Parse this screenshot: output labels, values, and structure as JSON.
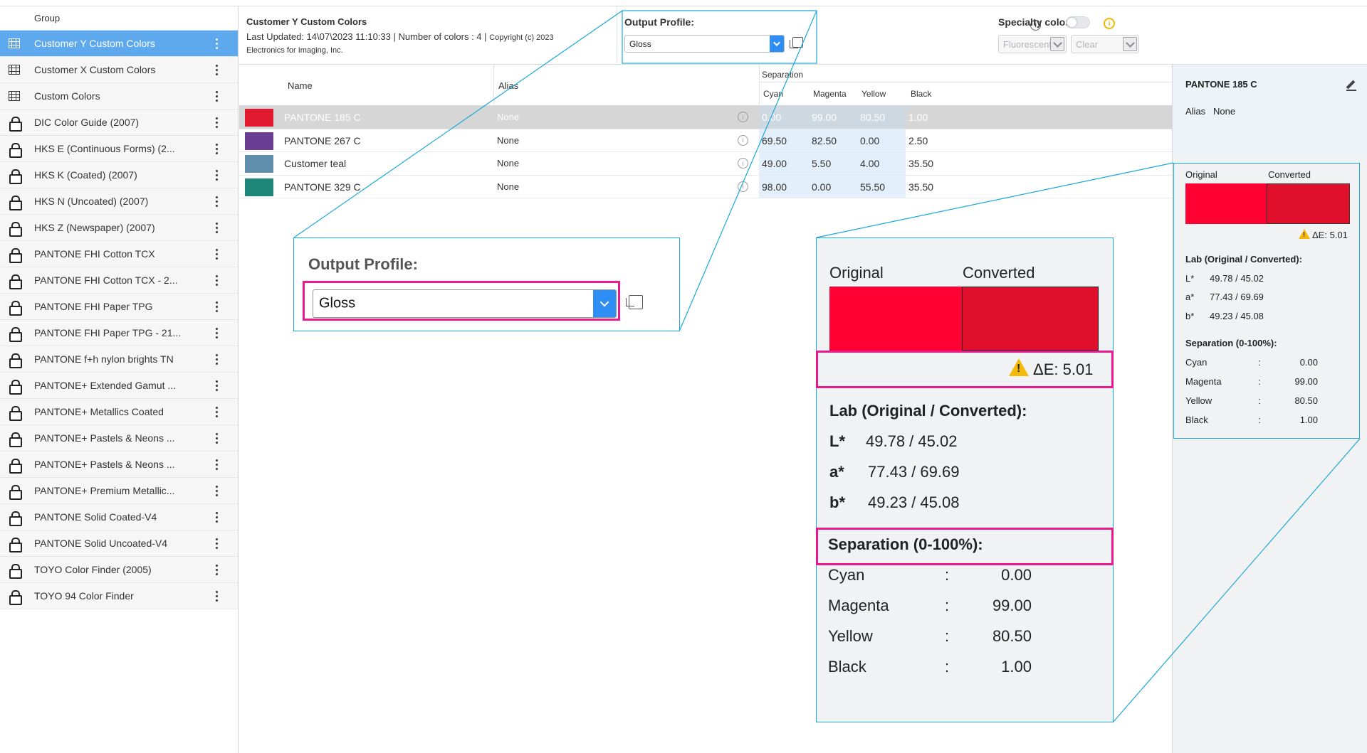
{
  "sidebar": {
    "header": "Group",
    "items": [
      {
        "label": "Customer Y Custom Colors",
        "icon": "grid-icon",
        "selected": true
      },
      {
        "label": "Customer X Custom Colors",
        "icon": "grid-icon"
      },
      {
        "label": "Custom Colors",
        "icon": "grid-icon"
      },
      {
        "label": "DIC Color Guide (2007)",
        "icon": "lock-icon"
      },
      {
        "label": "HKS E (Continuous Forms) (2...",
        "icon": "lock-icon"
      },
      {
        "label": "HKS K (Coated) (2007)",
        "icon": "lock-icon"
      },
      {
        "label": "HKS N (Uncoated) (2007)",
        "icon": "lock-icon"
      },
      {
        "label": "HKS Z (Newspaper) (2007)",
        "icon": "lock-icon"
      },
      {
        "label": "PANTONE FHI Cotton TCX",
        "icon": "lock-icon"
      },
      {
        "label": "PANTONE FHI Cotton TCX - 2...",
        "icon": "lock-icon"
      },
      {
        "label": "PANTONE FHI Paper TPG",
        "icon": "lock-icon"
      },
      {
        "label": "PANTONE FHI Paper TPG - 21...",
        "icon": "lock-icon"
      },
      {
        "label": "PANTONE f+h nylon brights TN",
        "icon": "lock-icon"
      },
      {
        "label": "PANTONE+ Extended Gamut ...",
        "icon": "lock-icon"
      },
      {
        "label": "PANTONE+ Metallics Coated",
        "icon": "lock-icon"
      },
      {
        "label": "PANTONE+ Pastels & Neons ...",
        "icon": "lock-icon"
      },
      {
        "label": "PANTONE+ Pastels & Neons ...",
        "icon": "lock-icon"
      },
      {
        "label": "PANTONE+ Premium Metallic...",
        "icon": "lock-icon"
      },
      {
        "label": "PANTONE Solid Coated-V4",
        "icon": "lock-icon"
      },
      {
        "label": "PANTONE Solid Uncoated-V4",
        "icon": "lock-icon"
      },
      {
        "label": "TOYO Color Finder (2005)",
        "icon": "lock-icon"
      },
      {
        "label": "TOYO 94 Color Finder",
        "icon": "lock-icon"
      }
    ]
  },
  "header": {
    "title": "Customer Y Custom Colors",
    "line2": "Last Updated: 14\\07\\2023 11:10:33 | Number of colors : 4 |",
    "copyright": "Copyright (c) 2023",
    "line3": "Electronics for Imaging, Inc.",
    "output_profile_label": "Output Profile:",
    "output_profile_value": "Gloss",
    "specialty_label": "Specialty colors:",
    "specialty_select1": "Fluorescent P",
    "specialty_select2": "Clear",
    "info_glyph": "i",
    "warn_glyph": "i"
  },
  "table": {
    "columns": {
      "name": "Name",
      "alias": "Alias",
      "separation": "Separation",
      "cyan": "Cyan",
      "magenta": "Magenta",
      "yellow": "Yellow",
      "black": "Black"
    },
    "rows": [
      {
        "swatch": "#e0192f",
        "name": "PANTONE 185 C",
        "alias": "None",
        "cyan": "0.00",
        "magenta": "99.00",
        "yellow": "80.50",
        "black": "1.00",
        "selected": true
      },
      {
        "swatch": "#6a3f93",
        "name": "PANTONE 267 C",
        "alias": "None",
        "cyan": "69.50",
        "magenta": "82.50",
        "yellow": "0.00",
        "black": "2.50"
      },
      {
        "swatch": "#5f8fac",
        "name": "Customer teal",
        "alias": "None",
        "cyan": "49.00",
        "magenta": "5.50",
        "yellow": "4.00",
        "black": "35.50"
      },
      {
        "swatch": "#1e8678",
        "name": "PANTONE 329 C",
        "alias": "None",
        "cyan": "98.00",
        "magenta": "0.00",
        "yellow": "55.50",
        "black": "35.50"
      }
    ]
  },
  "detail": {
    "title": "PANTONE 185 C",
    "alias_label": "Alias",
    "alias_value": "None",
    "original_label": "Original",
    "converted_label": "Converted",
    "original_color": "#ff0033",
    "converted_color": "#e0102c",
    "delta_e": "ΔE: 5.01",
    "lab_title": "Lab (Original / Converted):",
    "l_label": "L*",
    "l_value": "49.78 / 45.02",
    "a_label": "a*",
    "a_value": "77.43 / 69.69",
    "b_label": "b*",
    "b_value": "49.23 / 45.08",
    "sep_title": "Separation (0-100%):",
    "sep": [
      {
        "label": "Cyan",
        "colon": ":",
        "value": "0.00"
      },
      {
        "label": "Magenta",
        "colon": ":",
        "value": "99.00"
      },
      {
        "label": "Yellow",
        "colon": ":",
        "value": "80.50"
      },
      {
        "label": "Black",
        "colon": ":",
        "value": "1.00"
      }
    ]
  }
}
